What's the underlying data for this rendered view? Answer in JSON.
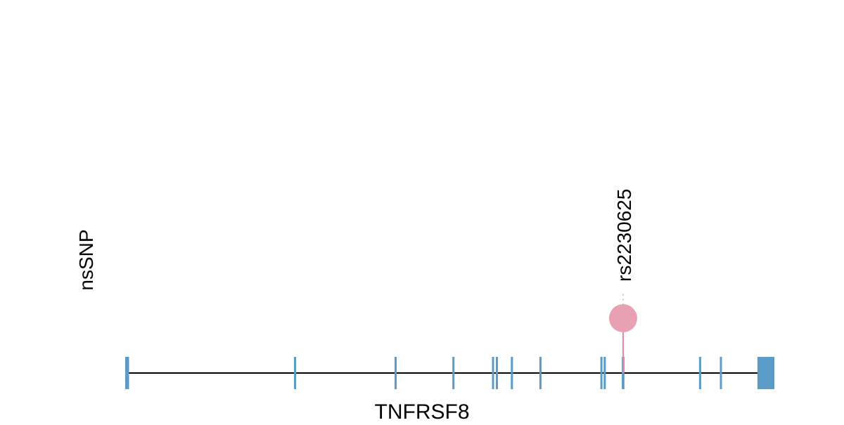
{
  "track_label": "nsSNP",
  "gene": {
    "name": "TNFRSF8",
    "start": 0,
    "end": 1000,
    "color": "#5b9bc8",
    "backbone_color": "#000000",
    "exons": [
      {
        "start": 0,
        "end": 6
      },
      {
        "start": 260,
        "end": 263
      },
      {
        "start": 415,
        "end": 418
      },
      {
        "start": 504,
        "end": 507
      },
      {
        "start": 565,
        "end": 568
      },
      {
        "start": 571,
        "end": 574
      },
      {
        "start": 594,
        "end": 597
      },
      {
        "start": 638,
        "end": 641
      },
      {
        "start": 732,
        "end": 735
      },
      {
        "start": 737,
        "end": 740
      },
      {
        "start": 765,
        "end": 769
      },
      {
        "start": 884,
        "end": 886
      },
      {
        "start": 916,
        "end": 919
      },
      {
        "start": 974,
        "end": 1000
      }
    ]
  },
  "variants": [
    {
      "id": "rs2230625",
      "position": 767,
      "color": "#e8a1b2",
      "stem_color": "#e8849e"
    }
  ]
}
